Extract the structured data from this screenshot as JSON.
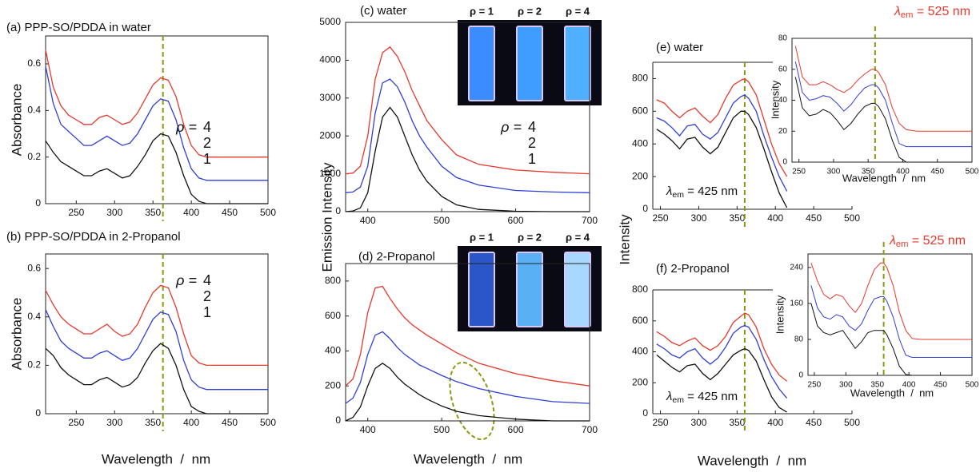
{
  "chart_data": [
    {
      "type": "line",
      "title": "(a) PPP-SO/PDDA in water",
      "y_label": "Absorbance",
      "legend": true,
      "legend_title": "ρ =",
      "x": [
        210,
        220,
        230,
        240,
        250,
        260,
        270,
        280,
        290,
        300,
        310,
        320,
        330,
        340,
        350,
        360,
        370,
        380,
        390,
        400,
        410,
        420,
        440,
        460,
        480,
        500
      ],
      "series": [
        {
          "name": "4",
          "color": "#e8382c",
          "values": [
            0.66,
            0.5,
            0.42,
            0.38,
            0.36,
            0.34,
            0.34,
            0.37,
            0.38,
            0.36,
            0.34,
            0.35,
            0.39,
            0.45,
            0.51,
            0.54,
            0.53,
            0.46,
            0.34,
            0.25,
            0.21,
            0.2,
            0.2,
            0.2,
            0.2,
            0.2
          ]
        },
        {
          "name": "2",
          "color": "#2f3fd6",
          "values": [
            0.59,
            0.43,
            0.34,
            0.31,
            0.28,
            0.25,
            0.25,
            0.27,
            0.29,
            0.27,
            0.25,
            0.26,
            0.3,
            0.36,
            0.42,
            0.45,
            0.44,
            0.36,
            0.24,
            0.15,
            0.11,
            0.1,
            0.1,
            0.1,
            0.1,
            0.1
          ]
        },
        {
          "name": "1",
          "color": "#111111",
          "values": [
            0.27,
            0.22,
            0.18,
            0.16,
            0.14,
            0.12,
            0.12,
            0.14,
            0.15,
            0.13,
            0.11,
            0.12,
            0.16,
            0.21,
            0.27,
            0.3,
            0.29,
            0.22,
            0.12,
            0.04,
            0.01,
            0,
            0,
            0,
            0,
            0
          ]
        }
      ],
      "xlim": [
        210,
        500
      ],
      "xticks": [
        250,
        300,
        350,
        400,
        450,
        500
      ],
      "ylim": [
        0,
        0.72
      ],
      "yticks": [
        0,
        0.2,
        0.4,
        0.6
      ],
      "marker_x": 363
    },
    {
      "type": "line",
      "title": "(b) PPP-SO/PDDA in 2-Propanol",
      "y_label": "Absorbance",
      "x_label": "Wavelength  /  nm",
      "legend": true,
      "legend_title": "ρ =",
      "x": [
        210,
        220,
        230,
        240,
        250,
        260,
        270,
        280,
        290,
        300,
        310,
        320,
        330,
        340,
        350,
        360,
        370,
        380,
        390,
        400,
        410,
        420,
        440,
        460,
        480,
        500
      ],
      "series": [
        {
          "name": "4",
          "color": "#e8382c",
          "values": [
            0.51,
            0.45,
            0.4,
            0.37,
            0.35,
            0.33,
            0.33,
            0.35,
            0.37,
            0.34,
            0.32,
            0.33,
            0.37,
            0.44,
            0.5,
            0.53,
            0.52,
            0.44,
            0.33,
            0.24,
            0.21,
            0.2,
            0.2,
            0.2,
            0.2,
            0.2
          ]
        },
        {
          "name": "2",
          "color": "#2f3fd6",
          "values": [
            0.43,
            0.36,
            0.3,
            0.27,
            0.25,
            0.23,
            0.23,
            0.25,
            0.26,
            0.24,
            0.22,
            0.23,
            0.27,
            0.33,
            0.39,
            0.42,
            0.41,
            0.34,
            0.22,
            0.14,
            0.11,
            0.1,
            0.1,
            0.1,
            0.1,
            0.1
          ]
        },
        {
          "name": "1",
          "color": "#111111",
          "values": [
            0.27,
            0.24,
            0.19,
            0.16,
            0.14,
            0.12,
            0.12,
            0.14,
            0.15,
            0.13,
            0.11,
            0.12,
            0.15,
            0.21,
            0.26,
            0.29,
            0.27,
            0.2,
            0.1,
            0.03,
            0.01,
            0,
            0,
            0,
            0,
            0
          ]
        }
      ],
      "xlim": [
        210,
        500
      ],
      "xticks": [
        250,
        300,
        350,
        400,
        450,
        500
      ],
      "ylim": [
        0,
        0.66
      ],
      "yticks": [
        0,
        0.2,
        0.4,
        0.6
      ],
      "marker_x": 363
    },
    {
      "type": "line",
      "title": "(c) water",
      "y_label": "Emission Intensity",
      "legend": true,
      "legend_title": "ρ =",
      "photo_labels": [
        "ρ = 1",
        "ρ = 2",
        "ρ = 4"
      ],
      "x": [
        370,
        380,
        390,
        400,
        410,
        420,
        430,
        440,
        450,
        460,
        470,
        480,
        500,
        520,
        550,
        600,
        650,
        700
      ],
      "series": [
        {
          "name": "4",
          "color": "#e8382c",
          "values": [
            1000,
            1020,
            1200,
            2000,
            3500,
            4200,
            4350,
            4100,
            3700,
            3200,
            2800,
            2400,
            1900,
            1500,
            1250,
            1100,
            1040,
            1000
          ]
        },
        {
          "name": "2",
          "color": "#2f3fd6",
          "values": [
            500,
            520,
            650,
            1200,
            2600,
            3400,
            3500,
            3300,
            2900,
            2400,
            2000,
            1700,
            1200,
            900,
            700,
            560,
            520,
            500
          ]
        },
        {
          "name": "1",
          "color": "#111111",
          "values": [
            0,
            20,
            100,
            500,
            1600,
            2500,
            2750,
            2500,
            2000,
            1500,
            1100,
            800,
            400,
            180,
            60,
            10,
            0,
            0
          ]
        }
      ],
      "xlim": [
        370,
        700
      ],
      "xticks": [
        400,
        500,
        600,
        700
      ],
      "ylim": [
        0,
        5000
      ],
      "yticks": [
        0,
        1000,
        2000,
        3000,
        4000,
        5000
      ]
    },
    {
      "type": "line",
      "title": "(d) 2-Propanol",
      "x_label": "Wavelength  /  nm",
      "photo_labels": [
        "ρ = 1",
        "ρ = 2",
        "ρ = 4"
      ],
      "x": [
        370,
        380,
        390,
        400,
        410,
        420,
        430,
        440,
        450,
        460,
        470,
        480,
        500,
        520,
        550,
        600,
        650,
        700
      ],
      "series": [
        {
          "name": "4",
          "color": "#e8382c",
          "values": [
            200,
            240,
            380,
            620,
            760,
            770,
            700,
            640,
            590,
            550,
            520,
            490,
            440,
            390,
            330,
            270,
            230,
            200
          ]
        },
        {
          "name": "2",
          "color": "#2f3fd6",
          "values": [
            100,
            130,
            220,
            380,
            490,
            510,
            470,
            420,
            380,
            350,
            320,
            300,
            260,
            225,
            185,
            140,
            110,
            100
          ]
        },
        {
          "name": "1",
          "color": "#111111",
          "values": [
            0,
            20,
            80,
            200,
            300,
            330,
            300,
            250,
            210,
            180,
            150,
            125,
            85,
            55,
            30,
            10,
            0,
            0
          ]
        }
      ],
      "xlim": [
        370,
        700
      ],
      "xticks": [
        400,
        500,
        600,
        700
      ],
      "ylim": [
        0,
        900
      ],
      "yticks": [
        0,
        200,
        400,
        600,
        800
      ]
    },
    {
      "type": "line",
      "title": "(e) water",
      "y_label": "Intensity",
      "annotation": {
        "symbol": "λ",
        "sub": "em",
        "text": " = 425 nm"
      },
      "x": [
        245,
        255,
        265,
        275,
        285,
        295,
        305,
        315,
        325,
        335,
        345,
        355,
        360,
        365,
        375,
        385,
        395,
        405,
        415
      ],
      "series": [
        {
          "name": "4",
          "color": "#e8382c",
          "values": [
            670,
            650,
            600,
            560,
            600,
            620,
            570,
            530,
            580,
            680,
            760,
            790,
            800,
            780,
            700,
            550,
            400,
            280,
            200
          ]
        },
        {
          "name": "2",
          "color": "#2f3fd6",
          "values": [
            560,
            540,
            500,
            450,
            510,
            520,
            460,
            430,
            470,
            560,
            650,
            690,
            700,
            680,
            600,
            450,
            320,
            200,
            110
          ]
        },
        {
          "name": "1",
          "color": "#111111",
          "values": [
            490,
            460,
            420,
            370,
            430,
            440,
            380,
            340,
            380,
            470,
            560,
            600,
            600,
            580,
            500,
            370,
            230,
            100,
            10
          ]
        }
      ],
      "xlim": [
        240,
        500
      ],
      "xticks": [
        250,
        300,
        350,
        400,
        450,
        500
      ],
      "ylim": [
        0,
        900
      ],
      "yticks": [
        0,
        200,
        400,
        600,
        800
      ],
      "marker_x": 360
    },
    {
      "type": "line",
      "title": {
        "symbol": "λ",
        "sub": "em",
        "text": " = 525 nm"
      },
      "y_label": "Intensity",
      "x_label": "Wavelength  /  nm",
      "x": [
        245,
        255,
        265,
        275,
        285,
        295,
        305,
        315,
        325,
        335,
        345,
        355,
        360,
        365,
        375,
        385,
        395,
        405,
        420,
        440,
        460,
        480,
        500
      ],
      "series": [
        {
          "name": "4",
          "color": "#e8382c",
          "values": [
            75,
            55,
            50,
            50,
            52,
            50,
            47,
            45,
            48,
            53,
            57,
            60,
            60,
            58,
            50,
            35,
            25,
            21,
            20,
            20,
            20,
            20,
            20
          ]
        },
        {
          "name": "2",
          "color": "#2f3fd6",
          "values": [
            65,
            45,
            40,
            41,
            43,
            42,
            38,
            33,
            37,
            43,
            48,
            50,
            50,
            48,
            40,
            25,
            12,
            10,
            10,
            10,
            10,
            10,
            10
          ]
        },
        {
          "name": "1",
          "color": "#111111",
          "values": [
            55,
            35,
            30,
            31,
            34,
            32,
            27,
            21,
            25,
            31,
            36,
            38,
            38,
            36,
            28,
            14,
            3,
            0,
            0,
            0,
            0,
            0,
            0
          ]
        }
      ],
      "xlim": [
        240,
        500
      ],
      "xticks": [
        250,
        300,
        350,
        400,
        450,
        500
      ],
      "ylim": [
        0,
        80
      ],
      "yticks": [
        0,
        20,
        40,
        60,
        80
      ],
      "marker_x": 360
    },
    {
      "type": "line",
      "title": "(f) 2-Propanol",
      "x_label": "Wavelength  /  nm",
      "annotation": {
        "symbol": "λ",
        "sub": "em",
        "text": " = 425 nm"
      },
      "x": [
        245,
        255,
        265,
        275,
        285,
        295,
        305,
        315,
        325,
        335,
        345,
        355,
        360,
        365,
        375,
        385,
        395,
        405,
        415
      ],
      "series": [
        {
          "name": "4",
          "color": "#e8382c",
          "values": [
            530,
            500,
            460,
            440,
            470,
            490,
            440,
            410,
            440,
            500,
            590,
            630,
            650,
            640,
            560,
            420,
            320,
            250,
            210
          ]
        },
        {
          "name": "2",
          "color": "#2f3fd6",
          "values": [
            450,
            420,
            380,
            360,
            400,
            420,
            360,
            320,
            360,
            430,
            520,
            560,
            570,
            560,
            480,
            350,
            240,
            160,
            100
          ]
        },
        {
          "name": "1",
          "color": "#111111",
          "values": [
            380,
            340,
            300,
            270,
            310,
            320,
            260,
            220,
            260,
            320,
            380,
            410,
            420,
            410,
            340,
            220,
            110,
            40,
            10
          ]
        }
      ],
      "xlim": [
        240,
        500
      ],
      "xticks": [
        250,
        300,
        350,
        400,
        450,
        500
      ],
      "ylim": [
        0,
        800
      ],
      "yticks": [
        0,
        200,
        400,
        600,
        800
      ],
      "marker_x": 360
    },
    {
      "type": "line",
      "title": {
        "symbol": "λ",
        "sub": "em",
        "text": " = 525 nm"
      },
      "y_label": "Intensity",
      "x_label": "Wavelength  /  nm",
      "x": [
        245,
        255,
        265,
        275,
        285,
        295,
        305,
        315,
        325,
        335,
        345,
        355,
        360,
        365,
        375,
        385,
        395,
        405,
        420,
        440,
        460,
        480,
        500
      ],
      "series": [
        {
          "name": "4",
          "color": "#e8382c",
          "values": [
            250,
            210,
            180,
            170,
            180,
            175,
            155,
            140,
            160,
            200,
            235,
            250,
            250,
            240,
            200,
            140,
            100,
            82,
            80,
            80,
            80,
            80,
            80
          ]
        },
        {
          "name": "2",
          "color": "#2f3fd6",
          "values": [
            200,
            150,
            130,
            125,
            135,
            130,
            110,
            100,
            115,
            145,
            170,
            175,
            175,
            165,
            130,
            80,
            45,
            40,
            40,
            40,
            40,
            40,
            40
          ]
        },
        {
          "name": "1",
          "color": "#111111",
          "values": [
            160,
            110,
            95,
            90,
            95,
            100,
            80,
            60,
            75,
            95,
            100,
            100,
            100,
            90,
            60,
            20,
            2,
            0,
            0,
            0,
            0,
            0,
            0
          ]
        }
      ],
      "xlim": [
        240,
        500
      ],
      "xticks": [
        250,
        300,
        350,
        400,
        450,
        500
      ],
      "ylim": [
        0,
        270
      ],
      "yticks": [
        0,
        80,
        160,
        240
      ],
      "marker_x": 360
    }
  ]
}
